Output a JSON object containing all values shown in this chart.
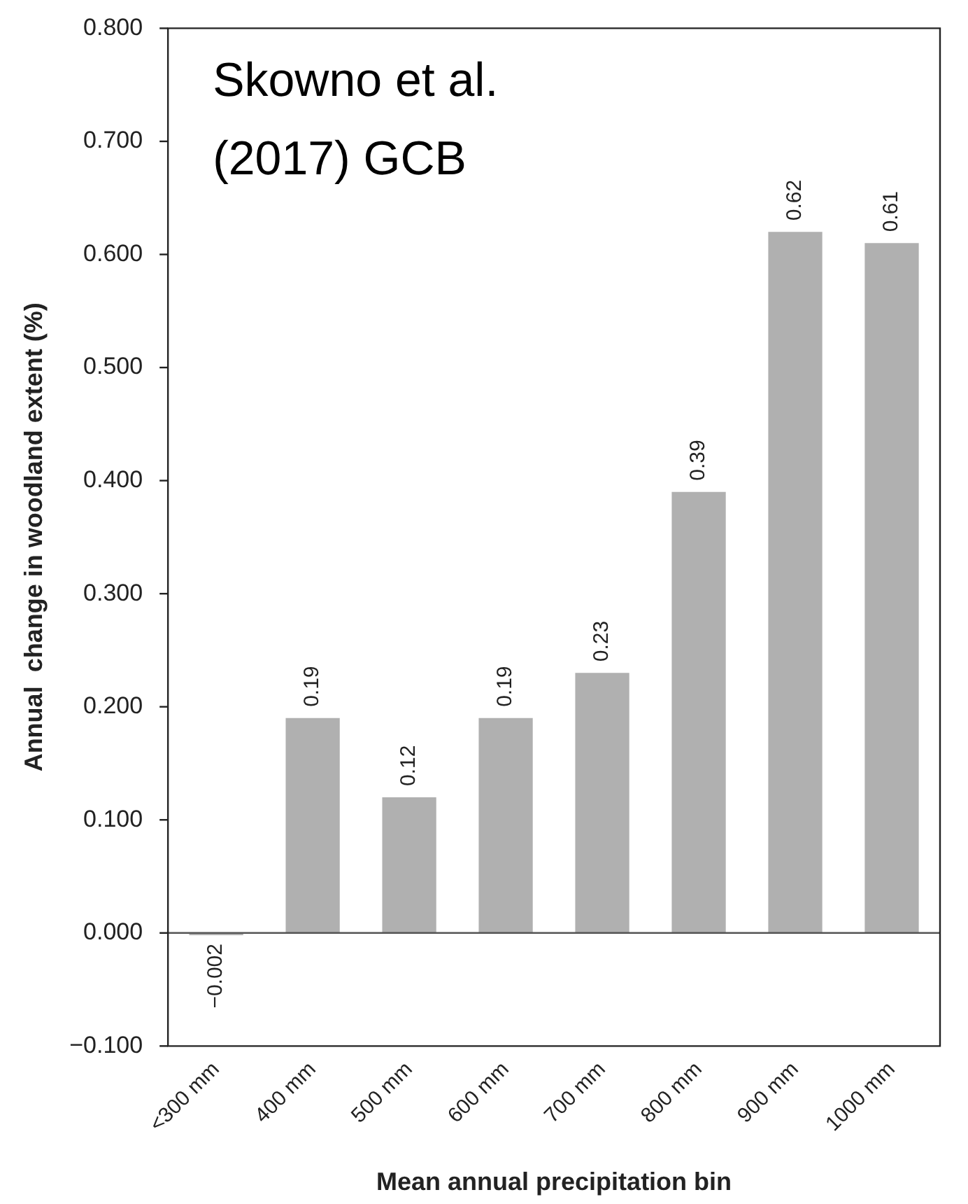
{
  "chart_data": {
    "type": "bar",
    "xlabel": "Mean annual precipitation bin",
    "ylabel": "Annual  change in woodland extent (%)",
    "annotations": [
      "Skowno et al.",
      "(2017) GCB"
    ],
    "categories": [
      "<300 mm",
      "400 mm",
      "500 mm",
      "600 mm",
      "700 mm",
      "800 mm",
      "900 mm",
      "1000 mm"
    ],
    "values": [
      -0.002,
      0.19,
      0.12,
      0.19,
      0.23,
      0.39,
      0.62,
      0.61
    ],
    "value_labels": [
      "−0.002",
      "0.19",
      "0.12",
      "0.19",
      "0.23",
      "0.39",
      "0.62",
      "0.61"
    ],
    "color": "#b0b0b0",
    "ylim": [
      -0.1,
      0.8
    ],
    "yticks": [
      {
        "value": -0.1,
        "label": "−0.100"
      },
      {
        "value": 0,
        "label": "0.000"
      },
      {
        "value": 0.1,
        "label": "0.100"
      },
      {
        "value": 0.2,
        "label": "0.200"
      },
      {
        "value": 0.3,
        "label": "0.300"
      },
      {
        "value": 0.4,
        "label": "0.400"
      },
      {
        "value": 0.5,
        "label": "0.500"
      },
      {
        "value": 0.6,
        "label": "0.600"
      },
      {
        "value": 0.7,
        "label": "0.700"
      },
      {
        "value": 0.8,
        "label": "0.800"
      }
    ],
    "legend": false
  }
}
